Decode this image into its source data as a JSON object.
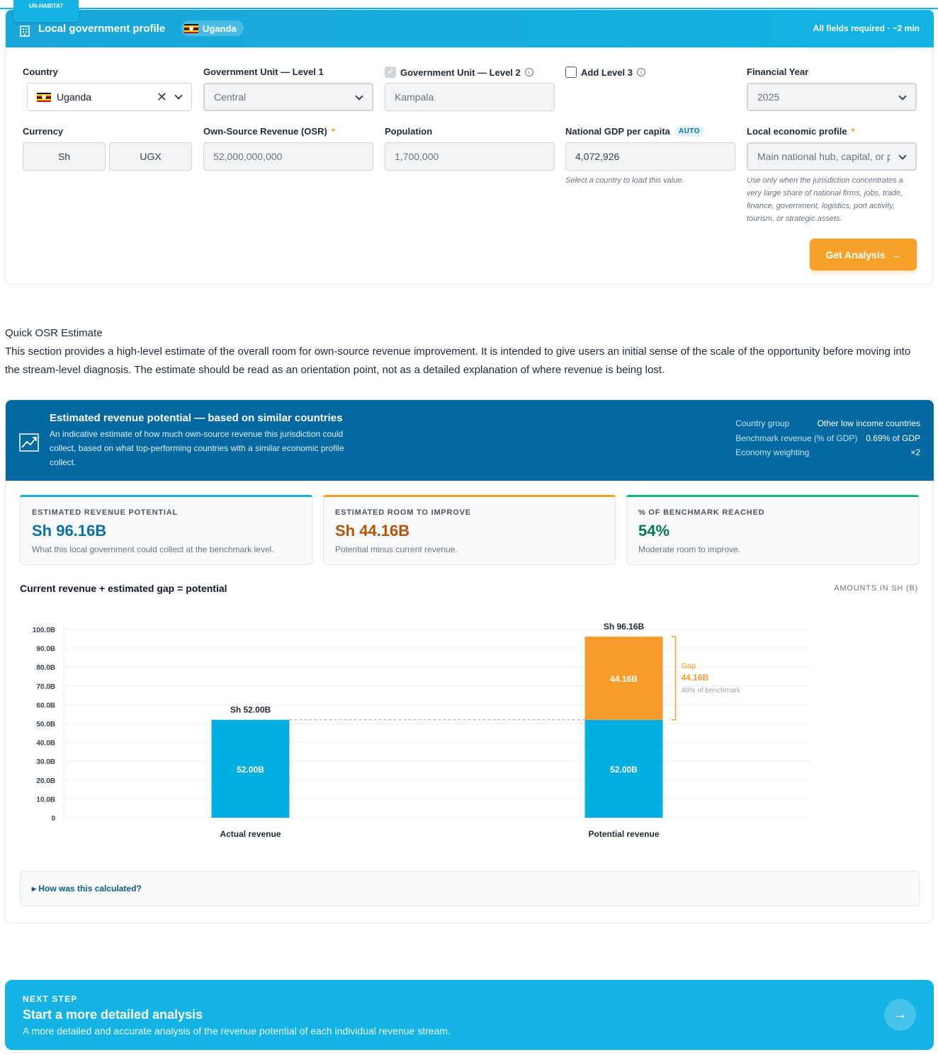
{
  "brand": {
    "logo_text": "UN-HABITAT"
  },
  "profile": {
    "title": "Local government profile",
    "country_pill": "Uganda",
    "requirement_note": "All fields required · ~2 min",
    "fields": {
      "country": {
        "label": "Country",
        "value": "Uganda"
      },
      "gov_level1": {
        "label": "Government Unit — Level 1",
        "value": "Central"
      },
      "gov_level2": {
        "label": "Government Unit — Level 2",
        "value": "Kampala",
        "checked": true
      },
      "add_level3": {
        "label": "Add Level 3",
        "checked": false
      },
      "financial_year": {
        "label": "Financial Year",
        "value": "2025"
      },
      "currency": {
        "label": "Currency",
        "symbol": "Sh",
        "code": "UGX"
      },
      "osr": {
        "label": "Own-Source Revenue (OSR)",
        "value": "52,000,000,000"
      },
      "population": {
        "label": "Population",
        "value": "1,700,000"
      },
      "gdp": {
        "label": "National GDP per capita",
        "badge": "AUTO",
        "value": "4,072,926",
        "help": "Select a country to load this value."
      },
      "economic_profile": {
        "label": "Local economic profile",
        "value": "Main national hub, capital, or p",
        "help": "Use only when the jurisdiction concentrates a very large share of national firms, jobs, trade, finance, government, logistics, port activity, tourism, or strategic assets."
      }
    },
    "get_analysis_label": "Get Analysis",
    "required_mark": "*"
  },
  "quick": {
    "title": "Quick OSR Estimate",
    "description": "This section provides a high-level estimate of the overall room for own-source revenue improvement. It is intended to give users an initial sense of the scale of the opportunity before moving into the stream-level diagnosis. The estimate should be read as an orientation point, not as a detailed explanation of where revenue is being lost."
  },
  "estimate": {
    "title": "Estimated revenue potential — based on similar countries",
    "subtitle": "An indicative estimate of how much own-source revenue this jurisdiction could collect, based on what top-performing countries with a similar economic profile collect.",
    "meta": [
      {
        "key": "Country group",
        "value": "Other low income countries"
      },
      {
        "key": "Benchmark revenue (% of GDP)",
        "value": "0.69% of GDP"
      },
      {
        "key": "Economy weighting",
        "value": "×2"
      }
    ],
    "kpis": [
      {
        "label": "ESTIMATED REVENUE POTENTIAL",
        "value": "Sh 96.16B",
        "note": "What this local government could collect at the benchmark level.",
        "color": "#0b6fa4",
        "bar": "#13b3e3"
      },
      {
        "label": "ESTIMATED ROOM TO IMPROVE",
        "value": "Sh 44.16B",
        "note": "Potential minus current revenue.",
        "color": "#b45309",
        "bar": "#f7a12a"
      },
      {
        "label": "% OF BENCHMARK REACHED",
        "value": "54%",
        "note": "Moderate room to improve.",
        "color": "#047857",
        "bar": "#10b981"
      }
    ],
    "chart_title": "Current revenue + estimated gap = potential",
    "chart_unit": "AMOUNTS IN SH (B)",
    "calc_toggle": "▸ How was this calculated?"
  },
  "chart_data": {
    "type": "bar",
    "categories": [
      "Actual revenue",
      "Potential revenue"
    ],
    "series": [
      {
        "values": [
          52.0,
          52.0
        ],
        "labels": [
          "52.00B",
          "52.00B"
        ],
        "color": "#00aee0"
      },
      {
        "values": [
          0,
          44.16
        ],
        "labels": [
          "",
          "44.16B"
        ],
        "color": "#f89c2b"
      }
    ],
    "totals": [
      "Sh 52.00B",
      "Sh 96.16B"
    ],
    "ylim": [
      0,
      100
    ],
    "yticks": [
      {
        "v": 0,
        "label": "0"
      },
      {
        "v": 10,
        "label": "10.0B"
      },
      {
        "v": 20,
        "label": "20.0B"
      },
      {
        "v": 30,
        "label": "30.0B"
      },
      {
        "v": 40,
        "label": "40.0B"
      },
      {
        "v": 50,
        "label": "50.0B"
      },
      {
        "v": 60,
        "label": "60.0B"
      },
      {
        "v": 70,
        "label": "70.0B"
      },
      {
        "v": 80,
        "label": "80.0B"
      },
      {
        "v": 90,
        "label": "90.0B"
      },
      {
        "v": 100,
        "label": "100.0B"
      }
    ],
    "gap_annotation": {
      "title": "Gap",
      "value": "44.16B",
      "note": "46% of benchmark"
    },
    "grid": true
  },
  "next_step": {
    "kicker": "NEXT STEP",
    "title": "Start a more detailed analysis",
    "description": "A more detailed and accurate analysis of the revenue potential of each individual revenue stream.",
    "button_glyph": "→"
  }
}
